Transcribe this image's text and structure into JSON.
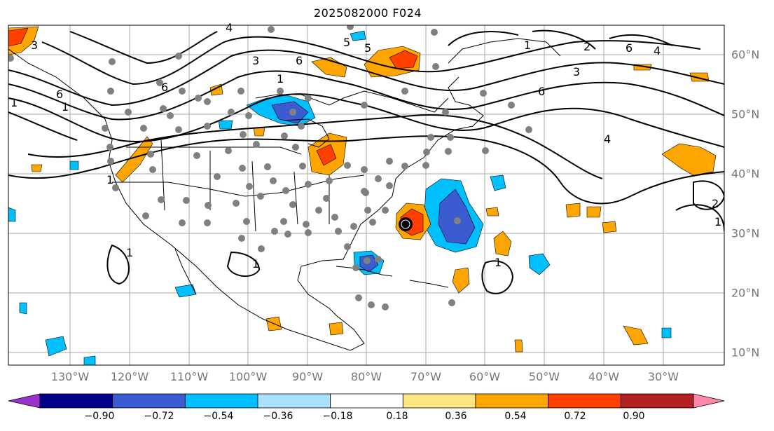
{
  "title": "2025082000 F024",
  "longitude_labels": [
    "130°W",
    "120°W",
    "110°W",
    "100°W",
    "90°W",
    "80°W",
    "70°W",
    "60°W",
    "50°W",
    "40°W",
    "30°W"
  ],
  "latitude_labels": [
    "60°N",
    "50°N",
    "40°N",
    "30°N",
    "20°N",
    "10°N"
  ],
  "colorbar": {
    "ticks": [
      "−0.90",
      "−0.72",
      "−0.54",
      "−0.36",
      "−0.18",
      "0.18",
      "0.36",
      "0.54",
      "0.72",
      "0.90"
    ],
    "colors": [
      "#9933cc",
      "#00008b",
      "#3b5bd1",
      "#00bfff",
      "#aadfff",
      "#ffffff",
      "#ffe680",
      "#ffa500",
      "#ff4000",
      "#b22222",
      "#ff88aa"
    ]
  },
  "contour_labels": [
    "3",
    "5",
    "6",
    "5",
    "4",
    "1",
    "3",
    "6",
    "1",
    "2",
    "3",
    "6",
    "4",
    "1",
    "6",
    "4",
    "6",
    "1",
    "1",
    "1",
    "2",
    "1",
    "1",
    "1"
  ],
  "color_fill": {
    "orange": "#ffa500",
    "red": "#ff4000",
    "light_blue": "#00bfff",
    "mid_blue": "#3b5bd1",
    "station_gray": "#808080"
  }
}
